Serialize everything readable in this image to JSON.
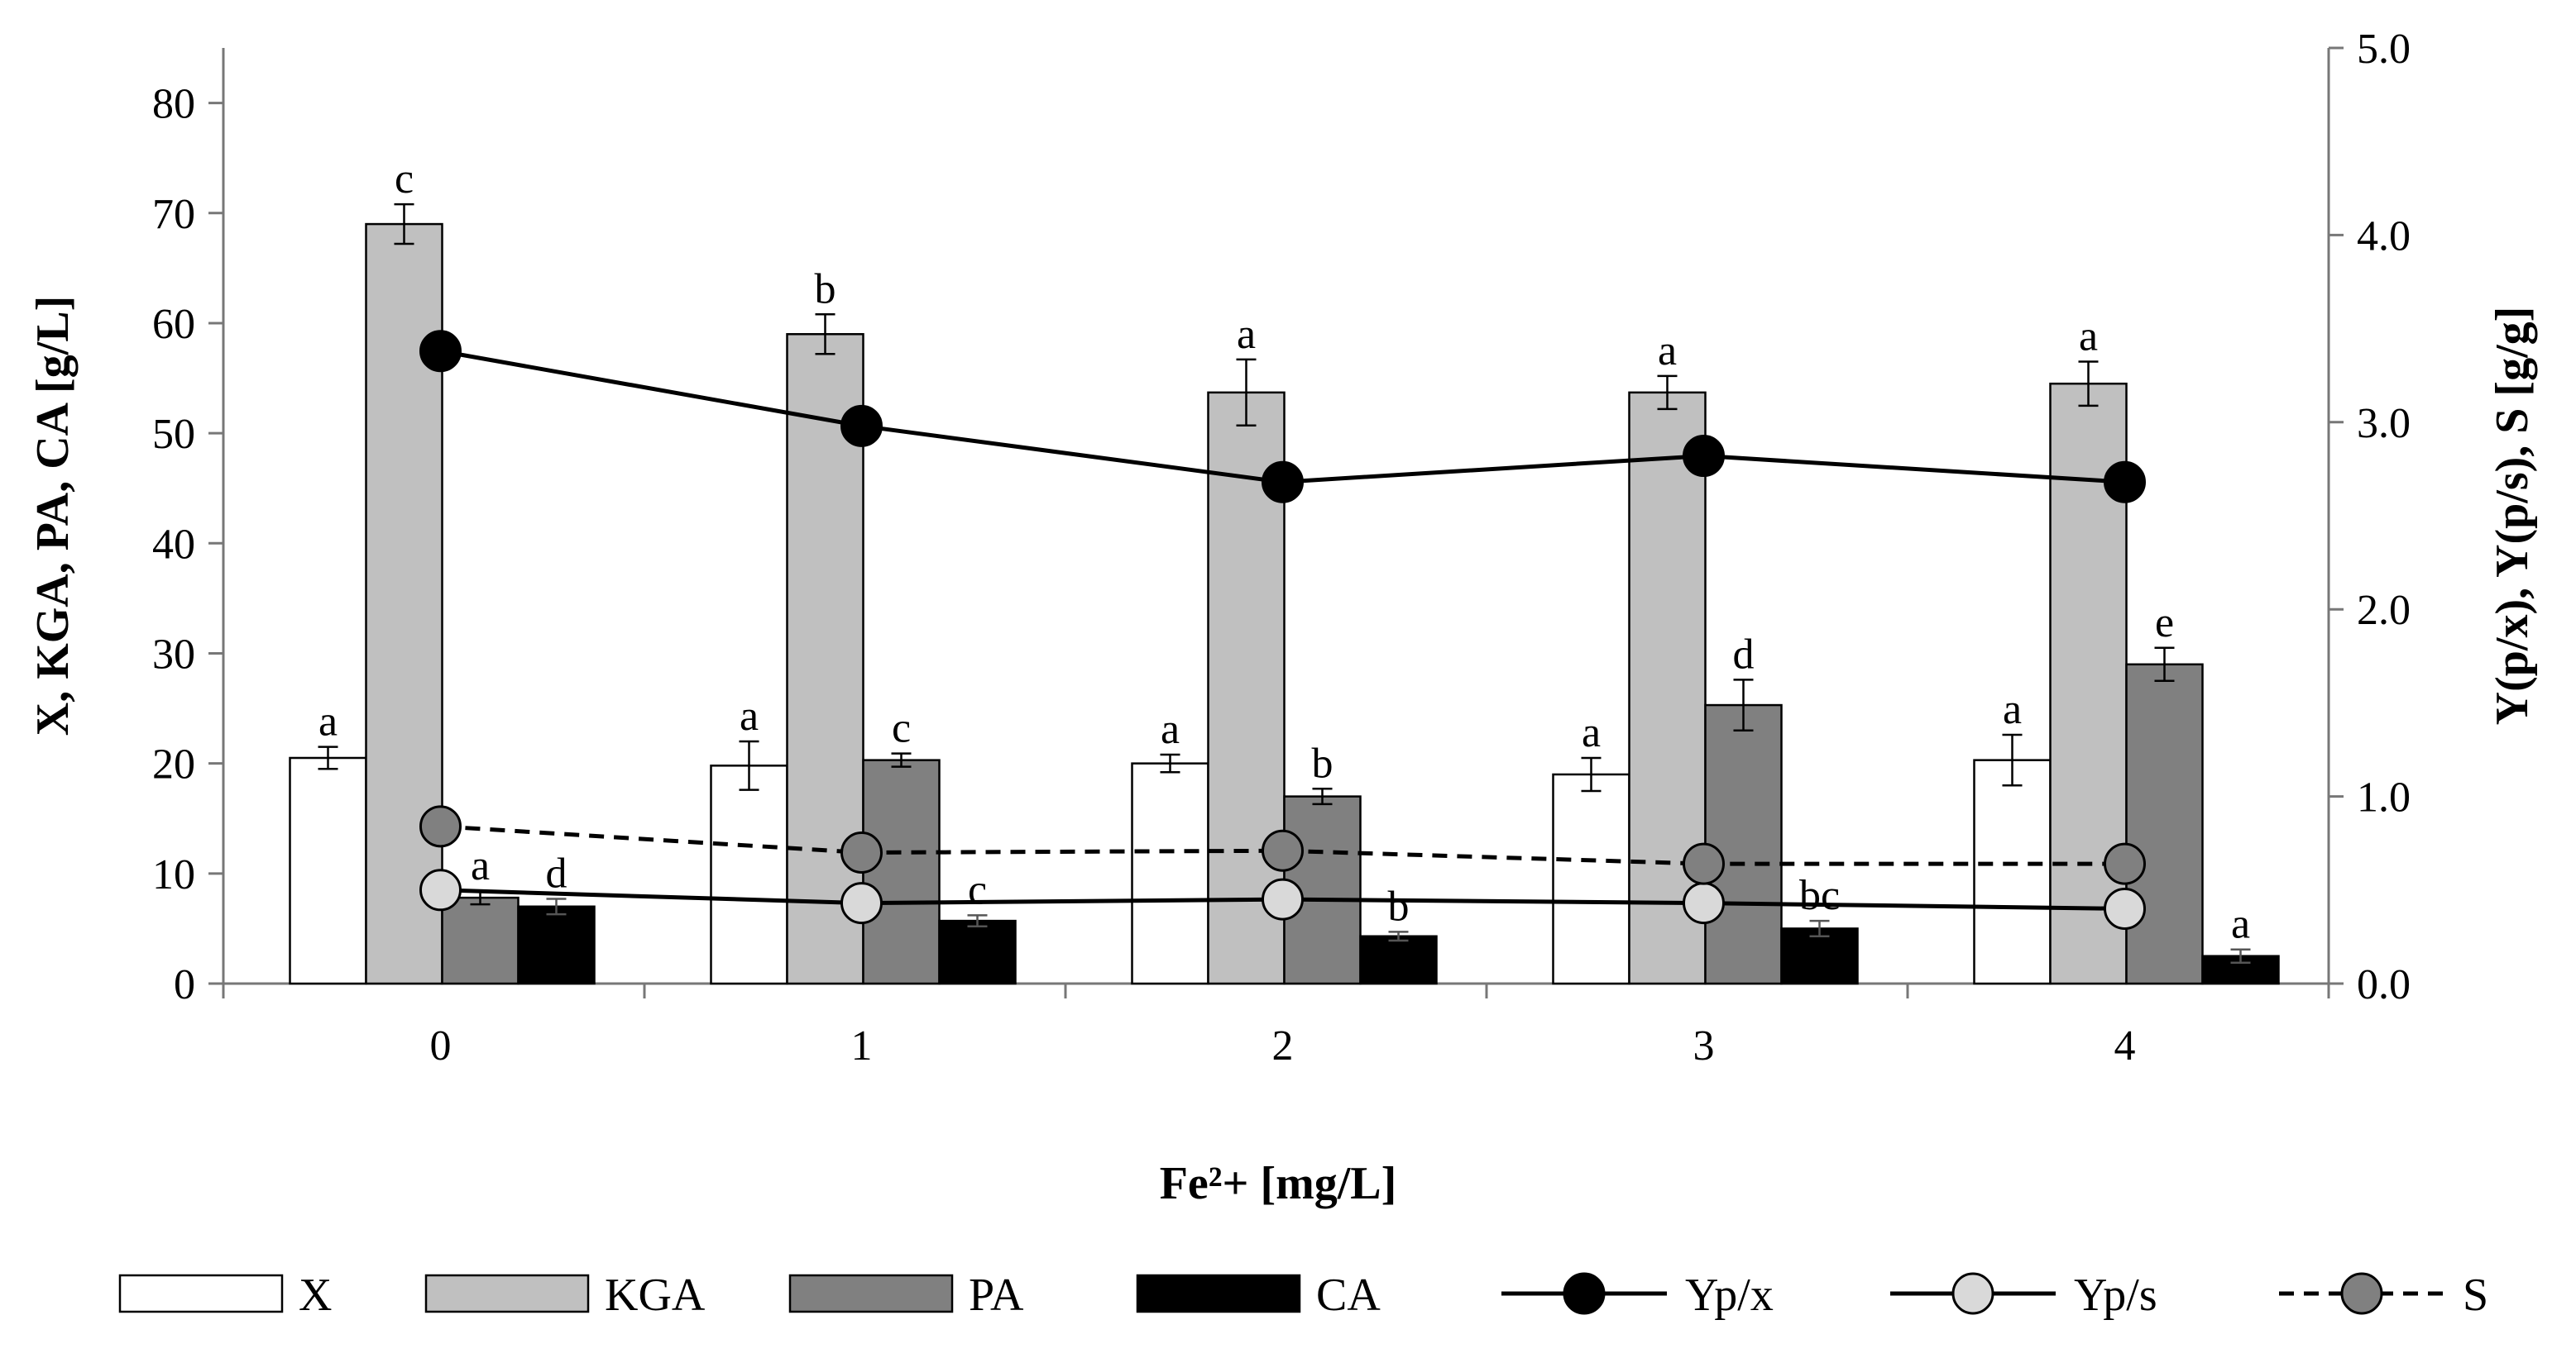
{
  "chart_data": {
    "type": "bar+line",
    "xlabel": "Fe²+ [mg/L]",
    "ylabel_left": "X, KGA, PA, CA [g/L]",
    "ylabel_right": "Y(p/x), Y(p/s), S  [g/g]",
    "categories": [
      "0",
      "1",
      "2",
      "3",
      "4"
    ],
    "ylim_left": [
      0,
      85
    ],
    "yticks_left": [
      "0",
      "10",
      "20",
      "30",
      "40",
      "50",
      "60",
      "70",
      "80"
    ],
    "ylim_right": [
      0,
      5
    ],
    "yticks_right": [
      "0.0",
      "1.0",
      "2.0",
      "3.0",
      "4.0",
      "5.0"
    ],
    "bar_series": [
      {
        "name": "X",
        "color": "#ffffff",
        "values": [
          20.5,
          19.8,
          20.0,
          19.0,
          20.3
        ],
        "errors": [
          1.0,
          2.2,
          0.8,
          1.5,
          2.3
        ],
        "letters": [
          "a",
          "a",
          "a",
          "a",
          "a"
        ]
      },
      {
        "name": "KGA",
        "color": "#c0c0c0",
        "values": [
          69.0,
          59.0,
          53.7,
          53.7,
          54.5
        ],
        "errors": [
          1.8,
          1.8,
          3.0,
          1.5,
          2.0
        ],
        "letters": [
          "c",
          "b",
          "a",
          "a",
          "a"
        ]
      },
      {
        "name": "PA",
        "color": "#808080",
        "values": [
          7.8,
          20.3,
          17.0,
          25.3,
          29.0
        ],
        "errors": [
          0.6,
          0.6,
          0.7,
          2.3,
          1.5
        ],
        "letters": [
          "a",
          "c",
          "b",
          "d",
          "e"
        ]
      },
      {
        "name": "CA",
        "color": "#000000",
        "values": [
          7.0,
          5.7,
          4.3,
          5.0,
          2.5
        ],
        "errors": [
          0.7,
          0.5,
          0.4,
          0.7,
          0.6
        ],
        "letters": [
          "d",
          "c",
          "b",
          "bc",
          "a"
        ]
      }
    ],
    "line_series": [
      {
        "name": "Yp/x",
        "axis": "right",
        "dash": "solid",
        "marker_color": "#000000",
        "values": [
          3.38,
          2.98,
          2.68,
          2.82,
          2.68
        ]
      },
      {
        "name": "Yp/s",
        "axis": "right",
        "dash": "solid",
        "marker_color": "#d9d9d9",
        "values": [
          0.5,
          0.43,
          0.45,
          0.43,
          0.4
        ]
      },
      {
        "name": "S",
        "axis": "right",
        "dash": "dashed",
        "marker_color": "#808080",
        "values": [
          0.84,
          0.7,
          0.71,
          0.64,
          0.64
        ]
      }
    ]
  }
}
